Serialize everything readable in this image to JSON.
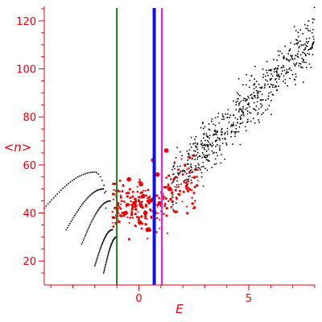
{
  "chart_data": {
    "type": "scatter",
    "title": "",
    "xlabel": "E",
    "ylabel": "<n>",
    "xlim": [
      -4.3,
      8.0
    ],
    "ylim": [
      10,
      126
    ],
    "x_ticks": [
      0,
      5
    ],
    "x_tick_labels": [
      "0",
      "5"
    ],
    "y_ticks": [
      20,
      40,
      60,
      80,
      100,
      120
    ],
    "y_tick_labels": [
      "20",
      "40",
      "60",
      "80",
      "100",
      "120"
    ],
    "grid": false,
    "legend": "none",
    "colors": {
      "axis": "#e8000b",
      "black_points": "#000000",
      "red_points": "#ee0000",
      "green_line": "#1a7a1a",
      "blue_line": "#1010ee",
      "magenta_line": "#e010e0"
    },
    "vertical_lines": [
      {
        "x": -1.0,
        "color": "#1a7a1a",
        "style": "thin"
      },
      {
        "x": 0.7,
        "color": "#1010ee",
        "style": "thick"
      },
      {
        "x": 1.05,
        "color": "#e010e0",
        "style": "thin"
      }
    ],
    "black_curves": [
      {
        "x_range": [
          -4.3,
          -1.5
        ],
        "y_start": 42,
        "y_peak": 57,
        "x_peak": -2.0
      },
      {
        "x_range": [
          -3.3,
          -1.5
        ],
        "y_start": 33,
        "y_peak": 50,
        "x_peak": -1.6
      },
      {
        "x_range": [
          -2.6,
          -1.3
        ],
        "y_start": 27,
        "y_peak": 45,
        "x_peak": -1.3
      },
      {
        "x_range": [
          -2.0,
          -1.2
        ],
        "y_start": 18,
        "y_peak": 33,
        "x_peak": -1.2
      },
      {
        "x_range": [
          -1.6,
          -1.0
        ],
        "y_start": 15,
        "y_peak": 30,
        "x_peak": -1.0
      }
    ],
    "black_cloud": {
      "x_range": [
        1.5,
        8.0
      ],
      "trend": "y = 38 + 9.5*x",
      "spread": 8
    },
    "red_cloud": {
      "x_range": [
        -1.2,
        2.7
      ],
      "center_y": 42,
      "spread": 7
    },
    "red_large_points": [
      {
        "x": -0.45,
        "y": 54
      },
      {
        "x": -0.2,
        "y": 44
      },
      {
        "x": 0.1,
        "y": 52
      },
      {
        "x": 0.2,
        "y": 47
      },
      {
        "x": 0.3,
        "y": 40
      },
      {
        "x": 0.5,
        "y": 45
      },
      {
        "x": 0.65,
        "y": 62
      },
      {
        "x": 0.85,
        "y": 56
      },
      {
        "x": 1.25,
        "y": 66
      },
      {
        "x": 0.05,
        "y": 36
      },
      {
        "x": -0.6,
        "y": 40
      },
      {
        "x": 0.95,
        "y": 44
      },
      {
        "x": 1.4,
        "y": 50
      },
      {
        "x": 0.4,
        "y": 33
      }
    ]
  }
}
